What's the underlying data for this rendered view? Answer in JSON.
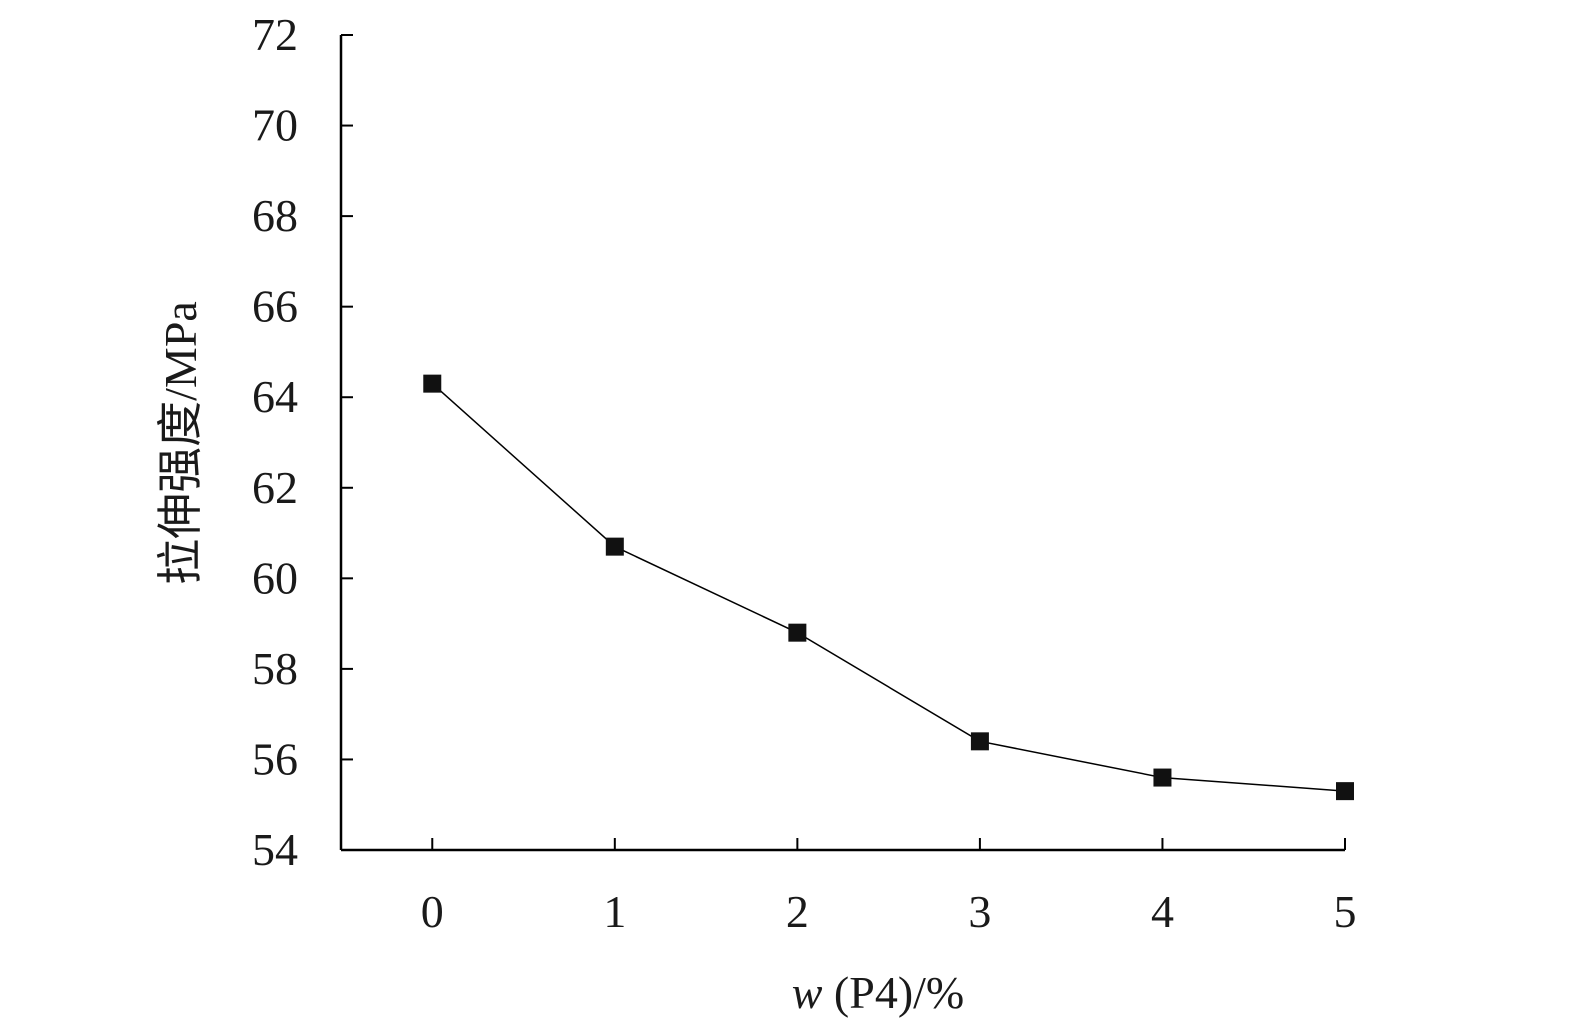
{
  "chart_data": {
    "type": "line",
    "x": [
      0,
      1,
      2,
      3,
      4,
      5
    ],
    "series": [
      {
        "values": [
          64.3,
          60.7,
          58.8,
          56.4,
          55.6,
          55.3
        ]
      }
    ],
    "xticks": [
      "0",
      "1",
      "2",
      "3",
      "4",
      "5"
    ],
    "yticks": [
      "54",
      "56",
      "58",
      "60",
      "62",
      "64",
      "66",
      "68",
      "70",
      "72"
    ],
    "xlabel": {
      "italic": "w",
      "rest": " (P4)/%"
    },
    "ylabel": "拉伸强度/MPa",
    "xlim": [
      -0.5,
      5
    ],
    "ylim": [
      54,
      72
    ],
    "grid": false,
    "marker": "square",
    "color": "#111111"
  }
}
